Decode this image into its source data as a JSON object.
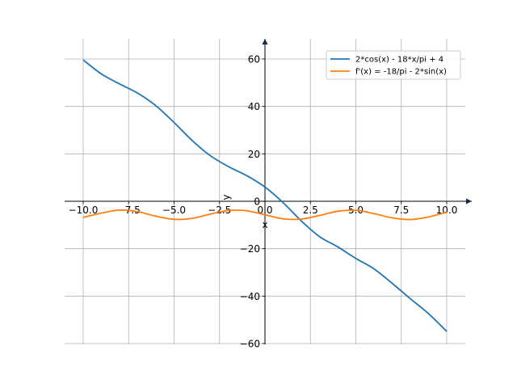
{
  "chart_data": {
    "type": "line",
    "title": "",
    "xlabel": "x",
    "ylabel": "y",
    "xlim": [
      -11,
      11
    ],
    "ylim": [
      -61,
      68
    ],
    "grid": true,
    "legend_position": "top-right",
    "x_ticks": [
      -10.0,
      -7.5,
      -5.0,
      -2.5,
      0.0,
      2.5,
      5.0,
      7.5,
      10.0
    ],
    "x_tick_labels": [
      "−10.0",
      "−7.5",
      "−5.0",
      "−2.5",
      "0.0",
      "2.5",
      "5.0",
      "7.5",
      "10.0"
    ],
    "y_ticks": [
      -60,
      -40,
      -20,
      0,
      20,
      40,
      60
    ],
    "y_tick_labels": [
      "−60",
      "−40",
      "−20",
      "0",
      "20",
      "40",
      "60"
    ],
    "x": [
      -10,
      -9,
      -8,
      -7,
      -6,
      -5,
      -4,
      -3,
      -2,
      -1,
      0,
      1,
      2,
      3,
      4,
      5,
      6,
      7,
      8,
      9,
      10
    ],
    "series": [
      {
        "name": "2*cos(x) - 18*x/pi + 4",
        "color": "#1f77b4",
        "values": [
          59.6,
          53.7,
          49.5,
          45.6,
          40.3,
          33.2,
          25.6,
          19.2,
          14.6,
          10.8,
          6.0,
          -0.6,
          -8.3,
          -14.9,
          -19.2,
          -24.1,
          -28.5,
          -34.6,
          -41.1,
          -47.4,
          -54.9
        ]
      },
      {
        "name": "f'(x) = -18/pi - 2*sin(x)",
        "color": "#ff7f0e",
        "values": [
          -6.8,
          -5.0,
          -3.7,
          -4.4,
          -6.3,
          -7.6,
          -7.2,
          -5.4,
          -3.9,
          -4.0,
          -5.7,
          -7.4,
          -7.5,
          -6.0,
          -4.2,
          -3.8,
          -5.2,
          -7.0,
          -7.7,
          -6.6,
          -4.6
        ]
      }
    ]
  }
}
